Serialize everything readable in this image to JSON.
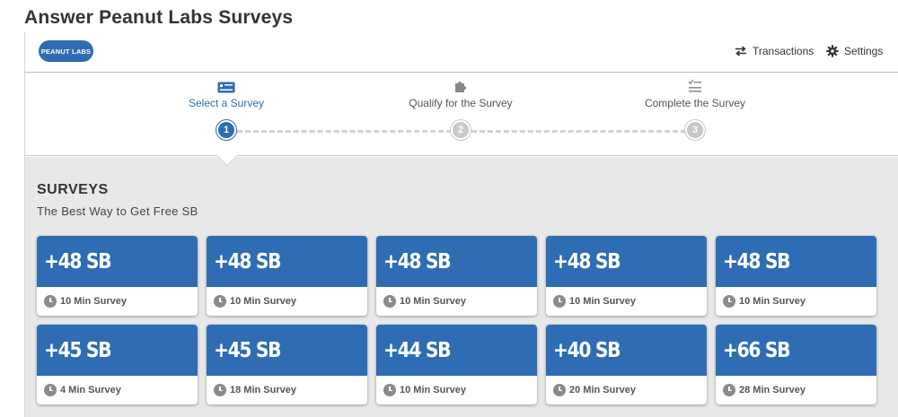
{
  "page": {
    "title": "Answer Peanut Labs Surveys"
  },
  "header": {
    "logo_text": "PEANUT LABS",
    "transactions_label": "Transactions",
    "settings_label": "Settings"
  },
  "steps": [
    {
      "label": "Select a Survey",
      "number": "1",
      "active": true
    },
    {
      "label": "Qualify for the Survey",
      "number": "2",
      "active": false
    },
    {
      "label": "Complete the Survey",
      "number": "3",
      "active": false
    }
  ],
  "surveys": {
    "title": "SURVEYS",
    "subtitle": "The Best Way to Get Free SB",
    "cards": [
      {
        "reward": "+48 SB",
        "duration": "10 Min Survey"
      },
      {
        "reward": "+48 SB",
        "duration": "10 Min Survey"
      },
      {
        "reward": "+48 SB",
        "duration": "10 Min Survey"
      },
      {
        "reward": "+48 SB",
        "duration": "10 Min Survey"
      },
      {
        "reward": "+48 SB",
        "duration": "10 Min Survey"
      },
      {
        "reward": "+45 SB",
        "duration": "4 Min Survey"
      },
      {
        "reward": "+45 SB",
        "duration": "18 Min Survey"
      },
      {
        "reward": "+44 SB",
        "duration": "10 Min Survey"
      },
      {
        "reward": "+40 SB",
        "duration": "20 Min Survey"
      },
      {
        "reward": "+66 SB",
        "duration": "28 Min Survey"
      }
    ]
  },
  "colors": {
    "accent": "#2e6db4",
    "background": "#e8e8e8",
    "inactive_step": "#c8c8c8"
  }
}
